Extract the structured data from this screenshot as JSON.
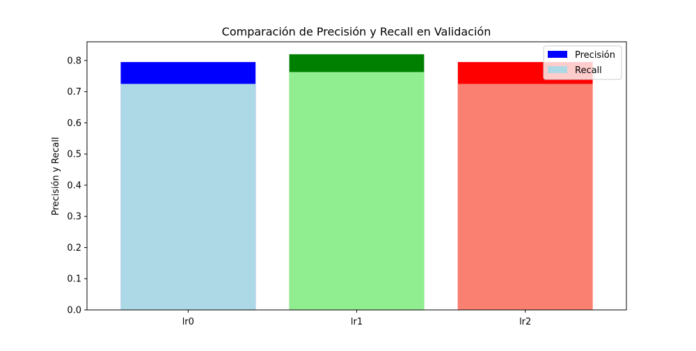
{
  "chart_data": {
    "type": "bar",
    "title": "Comparación de Precisión y Recall en Validación",
    "xlabel": "",
    "ylabel": "Precisión y Recall",
    "categories": [
      "lr0",
      "lr1",
      "lr2"
    ],
    "ylim": [
      0,
      0.86
    ],
    "yticks": [
      0.0,
      0.1,
      0.2,
      0.3,
      0.4,
      0.5,
      0.6,
      0.7,
      0.8
    ],
    "ytick_labels": [
      "0.0",
      "0.1",
      "0.2",
      "0.3",
      "0.4",
      "0.5",
      "0.6",
      "0.7",
      "0.8"
    ],
    "grid": false,
    "legend_position": "top-right",
    "series": [
      {
        "name": "Precisión",
        "values": [
          0.795,
          0.82,
          0.795
        ],
        "colors": [
          "#0000ff",
          "#008000",
          "#ff0000"
        ],
        "legend_color": "#0000ff"
      },
      {
        "name": "Recall",
        "values": [
          0.725,
          0.763,
          0.725
        ],
        "colors": [
          "#add8e6",
          "#90ee90",
          "#fa8072"
        ],
        "legend_color": "#add8e6"
      }
    ]
  }
}
